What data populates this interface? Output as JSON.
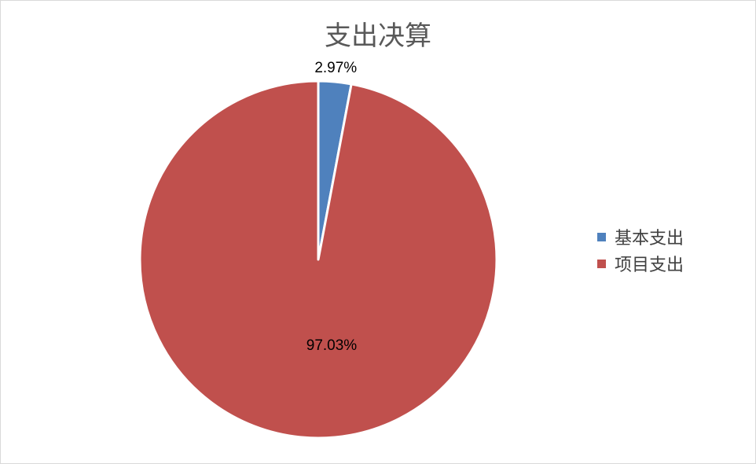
{
  "chart_data": {
    "type": "pie",
    "title": "支出决算",
    "categories": [
      "基本支出",
      "项目支出"
    ],
    "values": [
      2.97,
      97.03
    ],
    "data_labels": [
      "2.97%",
      "97.03%"
    ],
    "colors": [
      "#4f81bd",
      "#c0504d"
    ],
    "start_angle": "top",
    "direction": "clockwise",
    "legend_position": "right"
  }
}
